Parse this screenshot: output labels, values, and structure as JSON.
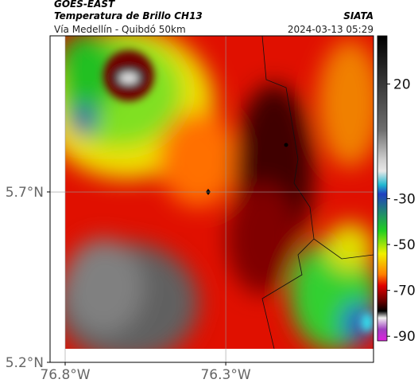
{
  "map": {
    "title": "GOES-EAST",
    "subtitle": "Temperatura de Brillo CH13",
    "source": "SIATA",
    "region": "Vía Medellín - Quibdó 50km",
    "datetime": "2024-03-13 05:29",
    "xlim": [
      -76.847,
      -75.84
    ],
    "ylim": [
      5.2,
      6.158
    ],
    "xticks": [
      {
        "value": -76.8,
        "label": "76.8°W"
      },
      {
        "value": -76.3,
        "label": "76.3°W"
      }
    ],
    "yticks": [
      {
        "value": 5.7,
        "label": "5.7°N"
      },
      {
        "value": 5.2,
        "label": "5.2°N"
      }
    ],
    "grid": true,
    "colorbar": {
      "clim": [
        -92,
        41
      ],
      "ticks": [
        20,
        -30,
        -50,
        -70,
        -90
      ],
      "stops": [
        {
          "value": 41,
          "color": "#000000"
        },
        {
          "value": 0,
          "color": "#6e6e6e"
        },
        {
          "value": -13,
          "color": "#cfcfcf"
        },
        {
          "value": -18,
          "color": "#e8e8e8"
        },
        {
          "value": -24,
          "color": "#20b8d0"
        },
        {
          "value": -28,
          "color": "#2040c0"
        },
        {
          "value": -44,
          "color": "#20d020"
        },
        {
          "value": -54,
          "color": "#f0f000"
        },
        {
          "value": -63,
          "color": "#ff8000"
        },
        {
          "value": -68,
          "color": "#e00000"
        },
        {
          "value": -75,
          "color": "#600000"
        },
        {
          "value": -79,
          "color": "#000000"
        },
        {
          "value": -82,
          "color": "#f0f0f0"
        },
        {
          "value": -87,
          "color": "#a040c0"
        },
        {
          "value": -92,
          "color": "#e020e0"
        }
      ]
    }
  }
}
